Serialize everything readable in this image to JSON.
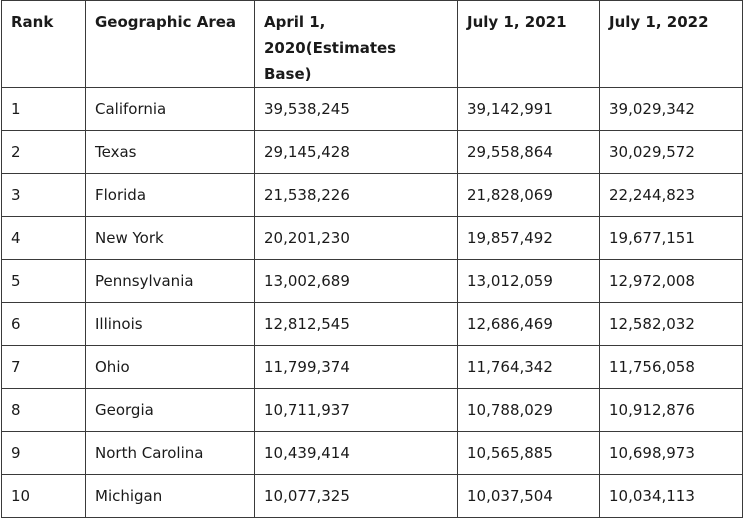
{
  "table": {
    "headers": {
      "rank": "Rank",
      "area": "Geographic Area",
      "apr2020": "April 1, 2020(Estimates Base)",
      "jul2021": "July 1, 2021",
      "jul2022": "July 1, 2022"
    },
    "rows": [
      {
        "rank": "1",
        "area": "California",
        "apr2020": "39,538,245",
        "jul2021": "39,142,991",
        "jul2022": "39,029,342"
      },
      {
        "rank": "2",
        "area": "Texas",
        "apr2020": "29,145,428",
        "jul2021": "29,558,864",
        "jul2022": "30,029,572"
      },
      {
        "rank": "3",
        "area": "Florida",
        "apr2020": "21,538,226",
        "jul2021": "21,828,069",
        "jul2022": "22,244,823"
      },
      {
        "rank": "4",
        "area": "New York",
        "apr2020": "20,201,230",
        "jul2021": "19,857,492",
        "jul2022": "19,677,151"
      },
      {
        "rank": "5",
        "area": "Pennsylvania",
        "apr2020": "13,002,689",
        "jul2021": "13,012,059",
        "jul2022": "12,972,008"
      },
      {
        "rank": "6",
        "area": "Illinois",
        "apr2020": "12,812,545",
        "jul2021": "12,686,469",
        "jul2022": "12,582,032"
      },
      {
        "rank": "7",
        "area": "Ohio",
        "apr2020": "11,799,374",
        "jul2021": "11,764,342",
        "jul2022": "11,756,058"
      },
      {
        "rank": "8",
        "area": "Georgia",
        "apr2020": "10,711,937",
        "jul2021": "10,788,029",
        "jul2022": "10,912,876"
      },
      {
        "rank": "9",
        "area": "North Carolina",
        "apr2020": "10,439,414",
        "jul2021": "10,565,885",
        "jul2022": "10,698,973"
      },
      {
        "rank": "10",
        "area": "Michigan",
        "apr2020": "10,077,325",
        "jul2021": "10,037,504",
        "jul2022": "10,034,113"
      }
    ]
  }
}
